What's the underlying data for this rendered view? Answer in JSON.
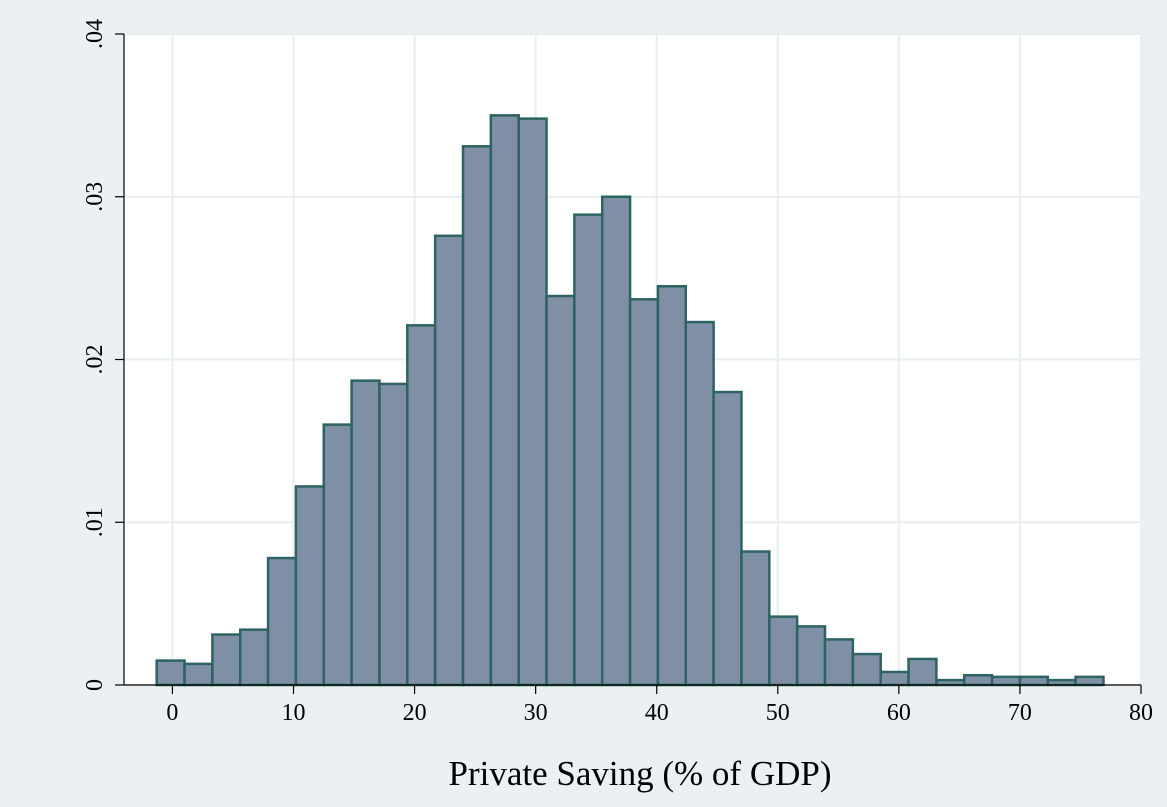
{
  "chart_data": {
    "type": "bar",
    "title": "",
    "xlabel": "Private Saving (% of GDP)",
    "ylabel": "",
    "xlim": [
      -4,
      80
    ],
    "ylim": [
      0,
      0.04
    ],
    "xticks": [
      0,
      10,
      20,
      30,
      40,
      50,
      60,
      70,
      80
    ],
    "xtick_labels": [
      "0",
      "10",
      "20",
      "30",
      "40",
      "50",
      "60",
      "70",
      "80"
    ],
    "yticks": [
      0,
      0.01,
      0.02,
      0.03,
      0.04
    ],
    "ytick_labels": [
      "0",
      ".01",
      ".02",
      ".03",
      ".04"
    ],
    "grid": true,
    "legend": "none",
    "bin_width": 2.3,
    "bin_start": -1.3,
    "values": [
      0.0015,
      0.0013,
      0.0031,
      0.0034,
      0.0078,
      0.0122,
      0.016,
      0.0187,
      0.0185,
      0.0221,
      0.0276,
      0.0331,
      0.035,
      0.0348,
      0.0239,
      0.0289,
      0.03,
      0.0237,
      0.0245,
      0.0223,
      0.018,
      0.0082,
      0.0042,
      0.0036,
      0.0028,
      0.0019,
      0.0008,
      0.0016,
      0.0003,
      0.0006,
      0.0005,
      0.0005,
      0.0003,
      0.0005
    ],
    "colors": {
      "bar_fill": "#7f90a6",
      "bar_stroke": "#2d6362",
      "plot_bg": "#ffffff",
      "outer_bg": "#eaf0f3",
      "grid": "#e8eef0"
    }
  }
}
